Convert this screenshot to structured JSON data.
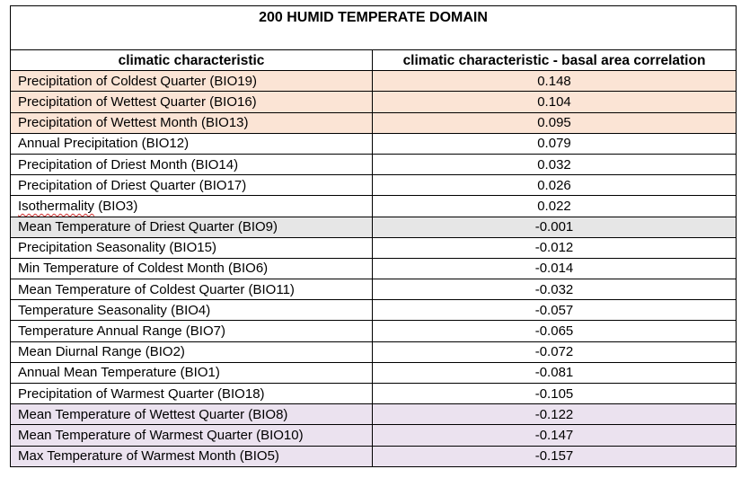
{
  "title": "200 HUMID TEMPERATE DOMAIN",
  "headers": {
    "col1": "climatic characteristic",
    "col2": "climatic characteristic - basal area correlation"
  },
  "row_colors": {
    "peach": "#fbe4d5",
    "grey": "#e6e6e6",
    "lavender": "#ebe2ef"
  },
  "rows": [
    {
      "name": "Precipitation of Coldest Quarter (BIO19)",
      "value": "0.148"
    },
    {
      "name": "Precipitation of Wettest Quarter (BIO16)",
      "value": "0.104"
    },
    {
      "name": "Precipitation of Wettest Month (BIO13)",
      "value": "0.095"
    },
    {
      "name": "Annual Precipitation (BIO12)",
      "value": "0.079"
    },
    {
      "name": "Precipitation of Driest Month (BIO14)",
      "value": "0.032"
    },
    {
      "name": "Precipitation of Driest Quarter (BIO17)",
      "value": "0.026"
    },
    {
      "name_main": "Isothermality",
      "name_rest": " (BIO3)",
      "value": "0.022"
    },
    {
      "name": "Mean Temperature of Driest Quarter (BIO9)",
      "value": "-0.001"
    },
    {
      "name": "Precipitation Seasonality (BIO15)",
      "value": "-0.012"
    },
    {
      "name": "Min Temperature of Coldest Month (BIO6)",
      "value": "-0.014"
    },
    {
      "name": "Mean Temperature of Coldest Quarter (BIO11)",
      "value": "-0.032"
    },
    {
      "name": "Temperature Seasonality (BIO4)",
      "value": "-0.057"
    },
    {
      "name": "Temperature Annual Range (BIO7)",
      "value": "-0.065"
    },
    {
      "name": "Mean Diurnal Range (BIO2)",
      "value": "-0.072"
    },
    {
      "name": "Annual Mean Temperature (BIO1)",
      "value": "-0.081"
    },
    {
      "name": "Precipitation of Warmest Quarter (BIO18)",
      "value": "-0.105"
    },
    {
      "name": "Mean Temperature of Wettest Quarter (BIO8)",
      "value": "-0.122"
    },
    {
      "name": "Mean Temperature of Warmest Quarter (BIO10)",
      "value": "-0.147"
    },
    {
      "name": "Max Temperature of Warmest Month (BIO5)",
      "value": "-0.157"
    }
  ]
}
